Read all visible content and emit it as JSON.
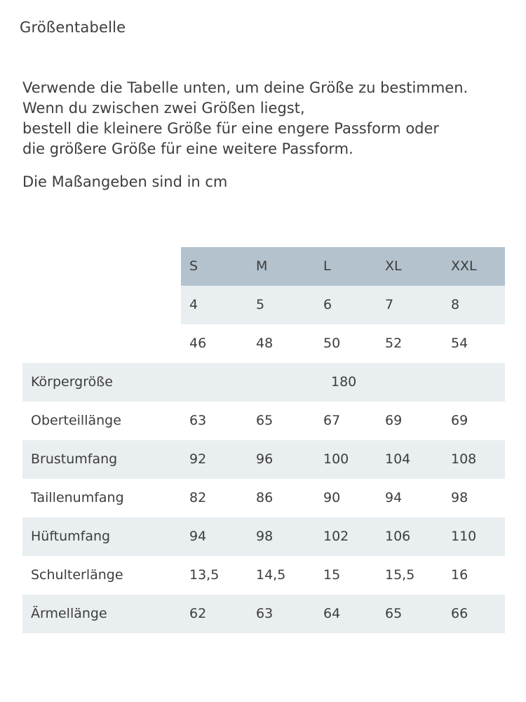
{
  "title": "Größentabelle",
  "intro": [
    "Verwende die Tabelle unten, um deine Größe zu bestimmen.",
    "Wenn du zwischen zwei Größen liegst,",
    "bestell die kleinere Größe für eine engere Passform oder",
    "die größere Größe für eine weitere Passform."
  ],
  "units_note": "Die Maßangeben sind in cm",
  "table": {
    "sizes": [
      "S",
      "M",
      "L",
      "XL",
      "XXL"
    ],
    "size_numbers": [
      "4",
      "5",
      "6",
      "7",
      "8"
    ],
    "eu_sizes": [
      "46",
      "48",
      "50",
      "52",
      "54"
    ],
    "koerpergroesse": {
      "label": "Körpergröße",
      "value": "180"
    },
    "rows": [
      {
        "label": "Oberteillänge",
        "values": [
          "63",
          "65",
          "67",
          "69",
          "69"
        ]
      },
      {
        "label": "Brustumfang",
        "values": [
          "92",
          "96",
          "100",
          "104",
          "108"
        ]
      },
      {
        "label": "Taillenumfang",
        "values": [
          "82",
          "86",
          "90",
          "94",
          "98"
        ]
      },
      {
        "label": "Hüftumfang",
        "values": [
          "94",
          "98",
          "102",
          "106",
          "110"
        ]
      },
      {
        "label": "Schulterlänge",
        "values": [
          "13,5",
          "14,5",
          "15",
          "15,5",
          "16"
        ]
      },
      {
        "label": "Ärmellänge",
        "values": [
          "62",
          "63",
          "64",
          "65",
          "66"
        ]
      }
    ]
  },
  "colors": {
    "header_bg": "#b4c2cd",
    "row_alt_bg": "#e9eef1",
    "text": "#3d3d3d"
  }
}
